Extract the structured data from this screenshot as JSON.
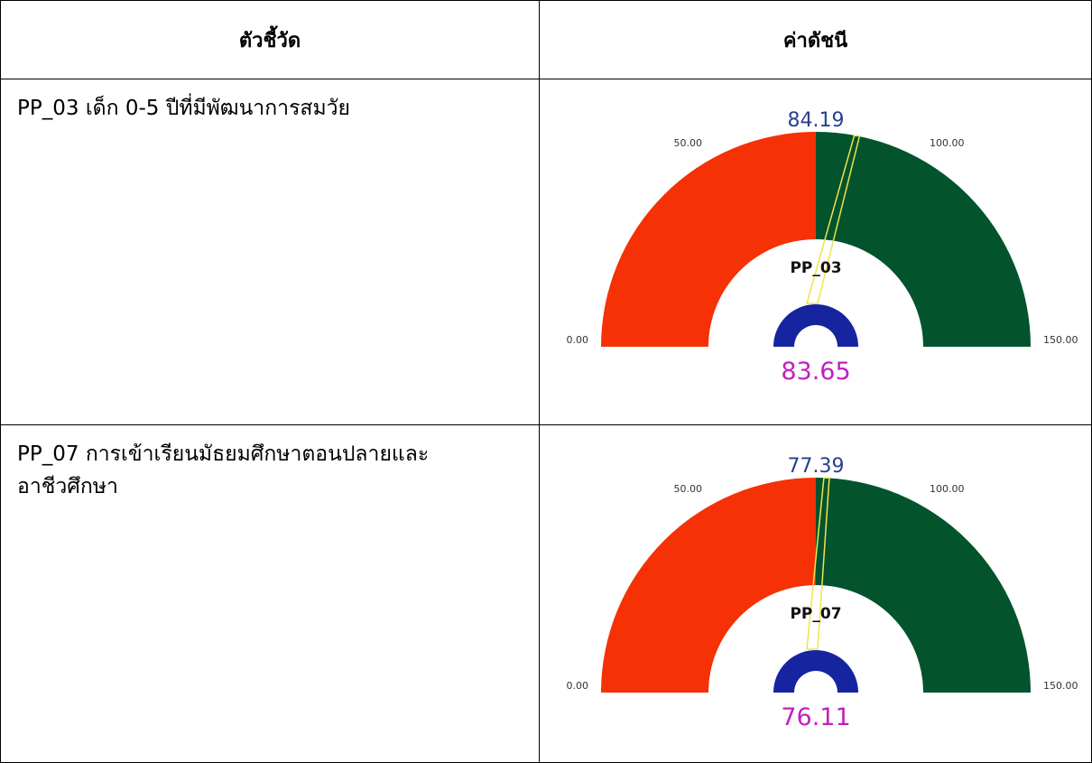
{
  "table": {
    "header": [
      "ตัวชี้วัด",
      "ค่าดัชนี"
    ],
    "rows": [
      "PP_03 เด็ก 0-5 ปีที่มีพัฒนาการสมวัย",
      "PP_07 การเข้าเรียนมัธยมศึกษาตอนปลายและอาชีวศึกษา"
    ]
  },
  "chart_data": [
    {
      "type": "gauge",
      "title": "PP_03",
      "value": 84.19,
      "secondary": 83.65,
      "ylim": [
        0,
        150
      ],
      "yticks": [
        {
          "value": 0,
          "label": "0.00"
        },
        {
          "value": 50,
          "label": "50.00"
        },
        {
          "value": 100,
          "label": "100.00"
        },
        {
          "value": 150,
          "label": "150.00"
        }
      ],
      "bands": [
        {
          "from": 0,
          "to": 75,
          "color": "#f53105"
        },
        {
          "from": 75,
          "to": 150,
          "color": "#03532d"
        }
      ],
      "value_color": "#2a3f8f",
      "secondary_color": "#c21fc0",
      "needle_color": "#f2e34a",
      "inner_color": "#1624a0"
    },
    {
      "type": "gauge",
      "title": "PP_07",
      "value": 77.39,
      "secondary": 76.11,
      "ylim": [
        0,
        150
      ],
      "yticks": [
        {
          "value": 0,
          "label": "0.00"
        },
        {
          "value": 50,
          "label": "50.00"
        },
        {
          "value": 100,
          "label": "100.00"
        },
        {
          "value": 150,
          "label": "150.00"
        }
      ],
      "bands": [
        {
          "from": 0,
          "to": 75,
          "color": "#f53105"
        },
        {
          "from": 75,
          "to": 150,
          "color": "#03532d"
        }
      ],
      "value_color": "#2a3f8f",
      "secondary_color": "#c21fc0",
      "needle_color": "#f2e34a",
      "inner_color": "#1624a0"
    }
  ]
}
